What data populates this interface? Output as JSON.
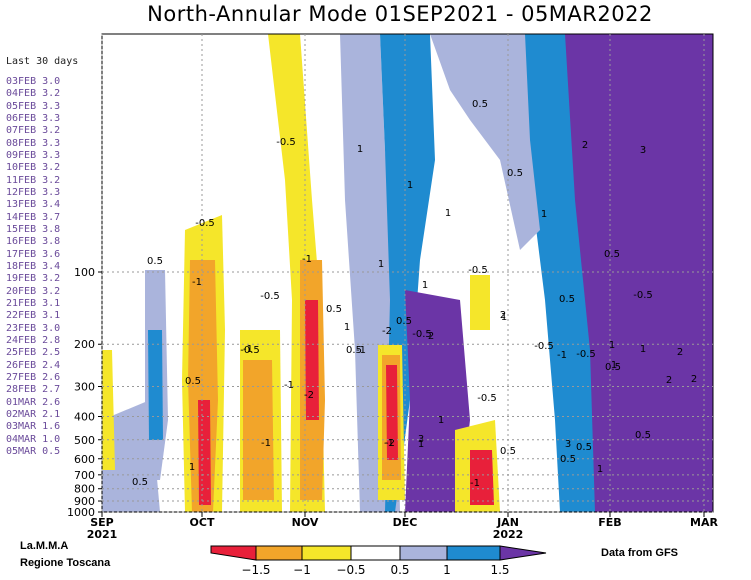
{
  "chart_data": {
    "type": "heatmap",
    "title": "North-Annular Mode 01SEP2021 - 05MAR2022",
    "y_axis": {
      "scale": "log",
      "inverted": true,
      "ticks": [
        "100",
        "200",
        "300",
        "400",
        "500",
        "600",
        "700",
        "800",
        "900",
        "1000"
      ]
    },
    "x_axis": {
      "months": [
        "SEP",
        "OCT",
        "NOV",
        "DEC",
        "JAN",
        "FEB",
        "MAR"
      ],
      "years": [
        "2021",
        "2022"
      ]
    },
    "grid": "dotted",
    "contour_labels": [
      "-0.5",
      "0.5",
      "0.5",
      "1",
      "1",
      "1",
      "2",
      "3",
      "0.5",
      "1",
      "-1",
      "-0.5",
      "1",
      "-1",
      "-0.5",
      "-1",
      "-2",
      "-1",
      "0.5",
      "-0.5",
      "0.5",
      "1",
      "0.5",
      "-0.5",
      "-2",
      "-1",
      "1",
      "0.5",
      "-0.5",
      "-1",
      "2",
      "1",
      "2",
      "1",
      "2",
      "2",
      "1",
      "3",
      "0.5",
      "-0.5",
      "0.5",
      "1",
      "0.5",
      "1",
      "1",
      "2",
      "3",
      "0.5",
      "0.5",
      "0.5",
      "-0.5",
      "1",
      "-1",
      "-1",
      "0.5",
      "-0.5",
      "-0.5",
      "-1",
      "-2",
      "1",
      "0.5"
    ],
    "colorbar": {
      "labels": [
        "−1.5",
        "−1",
        "−0.5",
        "0.5",
        "1",
        "1.5"
      ],
      "colors": [
        "#e8203a",
        "#f2a52a",
        "#f5e62a",
        "#ffffff",
        "#aab4dc",
        "#1f8bd0",
        "#6b35a6"
      ]
    }
  },
  "side_panel": {
    "header": "Last 30 days",
    "entries": [
      "03FEB 3.0",
      "04FEB 3.2",
      "05FEB 3.3",
      "06FEB 3.3",
      "07FEB 3.2",
      "08FEB 3.3",
      "09FEB 3.3",
      "10FEB 3.2",
      "11FEB 3.2",
      "12FEB 3.3",
      "13FEB 3.4",
      "14FEB 3.7",
      "15FEB 3.8",
      "16FEB 3.8",
      "17FEB 3.6",
      "18FEB 3.4",
      "19FEB 3.2",
      "20FEB 3.2",
      "21FEB 3.1",
      "22FEB 3.1",
      "23FEB 3.0",
      "24FEB 2.8",
      "25FEB 2.5",
      "26FEB 2.4",
      "27FEB 2.6",
      "28FEB 2.7",
      "01MAR 2.6",
      "02MAR 2.1",
      "03MAR 1.6",
      "04MAR 1.0",
      "05MAR 0.5"
    ]
  },
  "credits": {
    "line1": "La.M.M.A",
    "line2": "Regione Toscana",
    "source": "Data from GFS"
  }
}
